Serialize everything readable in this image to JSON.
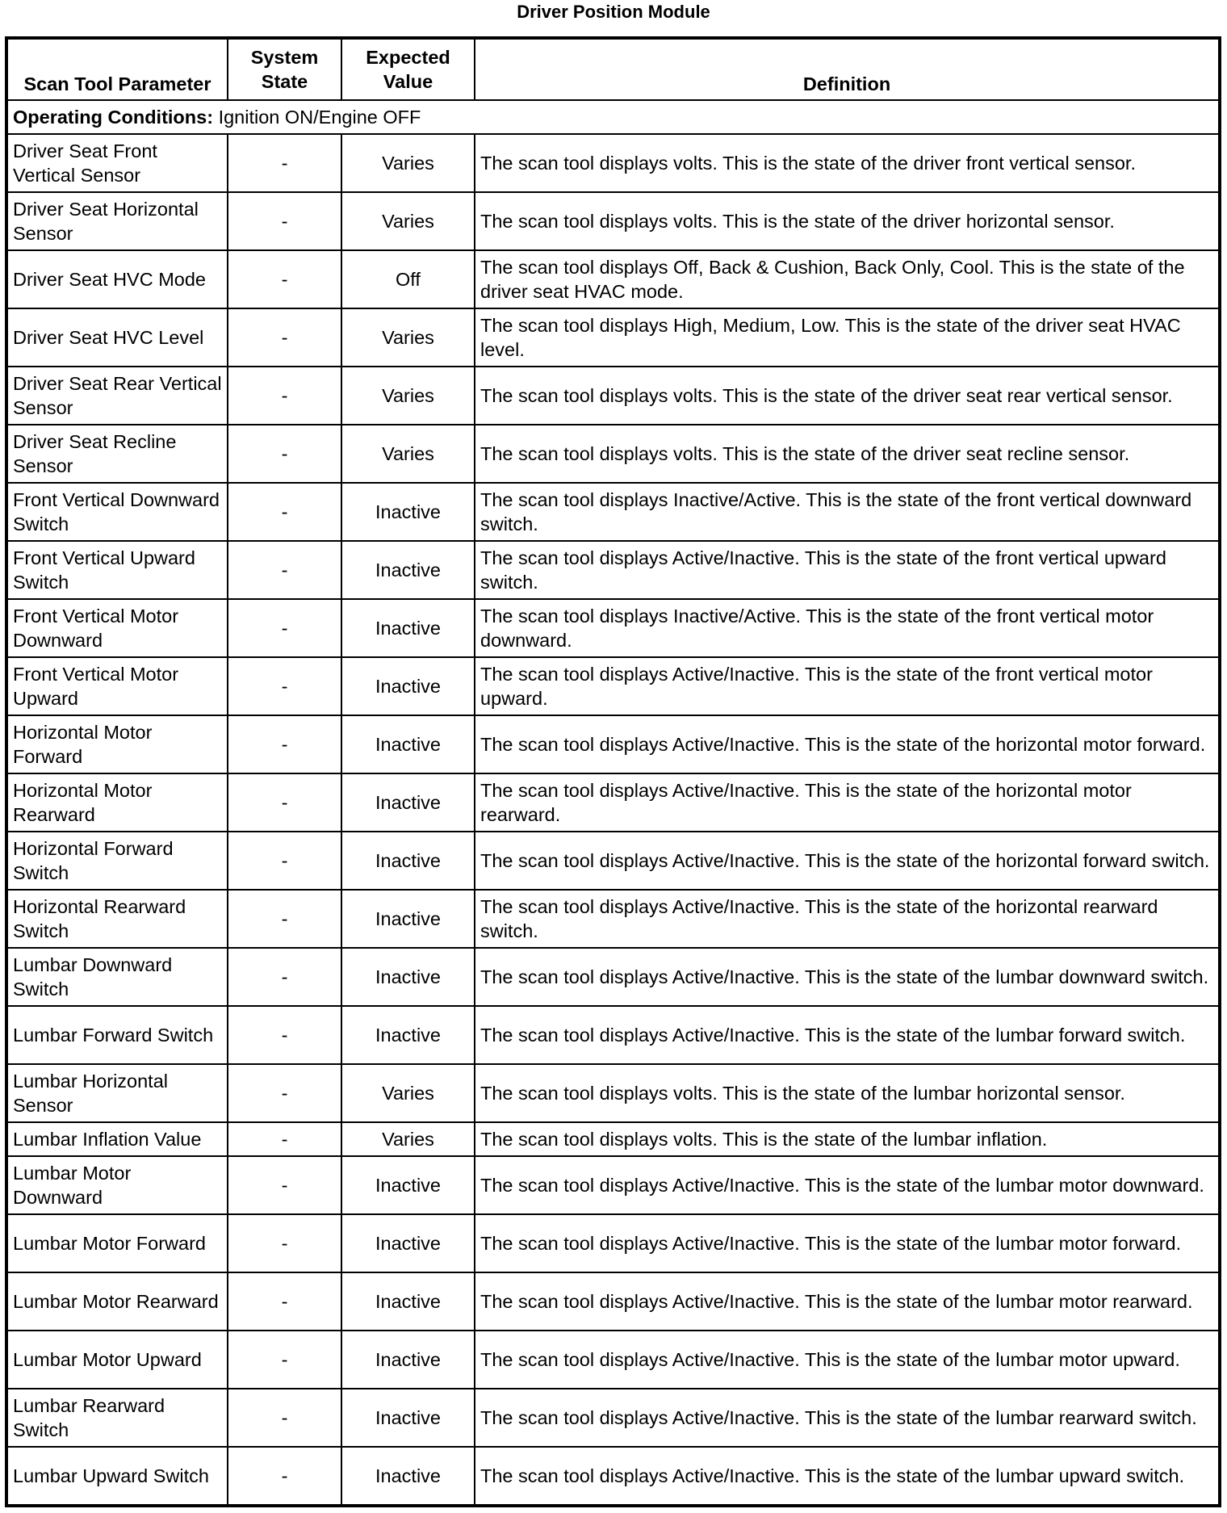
{
  "title": "Driver Position Module",
  "headers": {
    "parameter": "Scan Tool Parameter",
    "system_state": "System State",
    "expected_value": "Expected Value",
    "definition": "Definition"
  },
  "operating_conditions": {
    "label": "Operating Conditions:",
    "value": "Ignition ON/Engine OFF"
  },
  "rows": [
    {
      "parameter": "Driver Seat Front Vertical Sensor",
      "state": "-",
      "expected": "Varies",
      "definition": "The scan tool displays volts. This is the state of the driver front vertical sensor."
    },
    {
      "parameter": "Driver Seat Horizontal Sensor",
      "state": "-",
      "expected": "Varies",
      "definition": "The scan tool displays volts. This is the state of the driver horizontal sensor."
    },
    {
      "parameter": "Driver Seat HVC Mode",
      "state": "-",
      "expected": "Off",
      "definition": "The scan tool displays Off, Back & Cushion, Back Only, Cool. This is the state of the driver seat HVAC mode."
    },
    {
      "parameter": "Driver Seat HVC Level",
      "state": "-",
      "expected": "Varies",
      "definition": "The scan tool displays High, Medium, Low. This is the state of the driver seat HVAC level."
    },
    {
      "parameter": "Driver Seat Rear Vertical Sensor",
      "state": "-",
      "expected": "Varies",
      "definition": "The scan tool displays volts. This is the state of the driver seat rear vertical sensor."
    },
    {
      "parameter": "Driver Seat Recline Sensor",
      "state": "-",
      "expected": "Varies",
      "definition": "The scan tool displays volts. This is the state of the driver seat recline sensor."
    },
    {
      "parameter": "Front Vertical Downward Switch",
      "state": "-",
      "expected": "Inactive",
      "definition": "The scan tool displays Inactive/Active. This is the state of the front vertical downward switch."
    },
    {
      "parameter": "Front Vertical Upward Switch",
      "state": "-",
      "expected": "Inactive",
      "definition": "The scan tool displays Active/Inactive. This is the state of the front vertical upward switch."
    },
    {
      "parameter": "Front Vertical Motor Downward",
      "state": "-",
      "expected": "Inactive",
      "definition": "The scan tool displays Inactive/Active. This is the state of the front vertical motor downward."
    },
    {
      "parameter": "Front Vertical Motor Upward",
      "state": "-",
      "expected": "Inactive",
      "definition": "The scan tool displays Active/Inactive. This is the state of the front vertical motor upward."
    },
    {
      "parameter": "Horizontal Motor Forward",
      "state": "-",
      "expected": "Inactive",
      "definition": "The scan tool displays Active/Inactive. This is the state of the horizontal motor forward."
    },
    {
      "parameter": "Horizontal Motor Rearward",
      "state": "-",
      "expected": "Inactive",
      "definition": "The scan tool displays Active/Inactive. This is the state of the horizontal motor rearward."
    },
    {
      "parameter": "Horizontal Forward Switch",
      "state": "-",
      "expected": "Inactive",
      "definition": "The scan tool displays Active/Inactive. This is the state of the horizontal forward switch."
    },
    {
      "parameter": "Horizontal Rearward Switch",
      "state": "-",
      "expected": "Inactive",
      "definition": "The scan tool displays Active/Inactive. This is the state of the horizontal rearward switch."
    },
    {
      "parameter": "Lumbar Downward Switch",
      "state": "-",
      "expected": "Inactive",
      "definition": "The scan tool displays Active/Inactive. This is the state of the lumbar downward switch."
    },
    {
      "parameter": "Lumbar Forward Switch",
      "state": "-",
      "expected": "Inactive",
      "definition": "The scan tool displays Active/Inactive. This is the state of the lumbar forward switch."
    },
    {
      "parameter": "Lumbar Horizontal Sensor",
      "state": "-",
      "expected": "Varies",
      "definition": "The scan tool displays volts. This is the state of the lumbar horizontal sensor."
    },
    {
      "parameter": "Lumbar Inflation Value",
      "state": "-",
      "expected": "Varies",
      "definition": "The scan tool displays volts. This is the state of the lumbar inflation.",
      "single": true
    },
    {
      "parameter": "Lumbar Motor Downward",
      "state": "-",
      "expected": "Inactive",
      "definition": "The scan tool displays Active/Inactive. This is the state of the lumbar motor downward."
    },
    {
      "parameter": "Lumbar Motor Forward",
      "state": "-",
      "expected": "Inactive",
      "definition": "The scan tool displays Active/Inactive. This is the state of the lumbar motor forward."
    },
    {
      "parameter": "Lumbar Motor Rearward",
      "state": "-",
      "expected": "Inactive",
      "definition": "The scan tool displays Active/Inactive. This is the state of the lumbar motor rearward."
    },
    {
      "parameter": "Lumbar Motor Upward",
      "state": "-",
      "expected": "Inactive",
      "definition": "The scan tool displays Active/Inactive. This is the state of the lumbar motor upward."
    },
    {
      "parameter": "Lumbar Rearward Switch",
      "state": "-",
      "expected": "Inactive",
      "definition": "The scan tool displays Active/Inactive. This is the state of the lumbar rearward switch."
    },
    {
      "parameter": "Lumbar Upward Switch",
      "state": "-",
      "expected": "Inactive",
      "definition": "The scan tool displays Active/Inactive. This is the state of the lumbar upward switch."
    }
  ]
}
